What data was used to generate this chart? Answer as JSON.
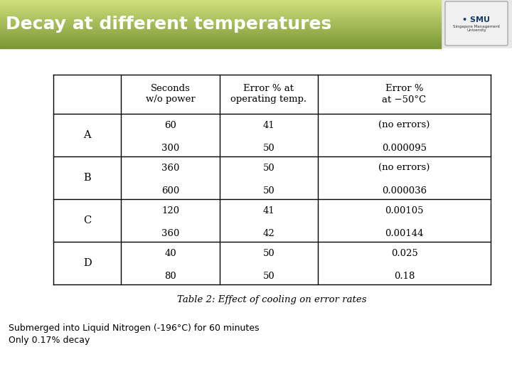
{
  "title": "Decay at different temperatures",
  "title_bg_color_top": "#c5d98a",
  "title_bg_color_bot": "#7a9a3a",
  "title_text_color": "#ffffff",
  "bg_color": "#e8e8e8",
  "table_bg": "#ffffff",
  "table_caption": "Table 2: Effect of cooling on error rates",
  "bottom_text_line1": "Submerged into Liquid Nitrogen (-196°C) for 60 minutes",
  "bottom_text_line2": "Only 0.17% decay",
  "col_headers": [
    "",
    "Seconds\nw/o power",
    "Error % at\noperating temp.",
    "Error %\nat −50°C"
  ],
  "row_labels": [
    "A",
    "B",
    "C",
    "D"
  ],
  "rows": [
    [
      [
        "60",
        "300"
      ],
      [
        "41",
        "50"
      ],
      [
        "(no errors)",
        "0.000095"
      ]
    ],
    [
      [
        "360",
        "600"
      ],
      [
        "50",
        "50"
      ],
      [
        "(no errors)",
        "0.000036"
      ]
    ],
    [
      [
        "120",
        "360"
      ],
      [
        "41",
        "42"
      ],
      [
        "0.00105",
        "0.00144"
      ]
    ],
    [
      [
        "40",
        "80"
      ],
      [
        "50",
        "50"
      ],
      [
        "0.025",
        "0.18"
      ]
    ]
  ],
  "table_font_size": 9.5,
  "header_font_size": 9.5,
  "title_fontsize": 18
}
